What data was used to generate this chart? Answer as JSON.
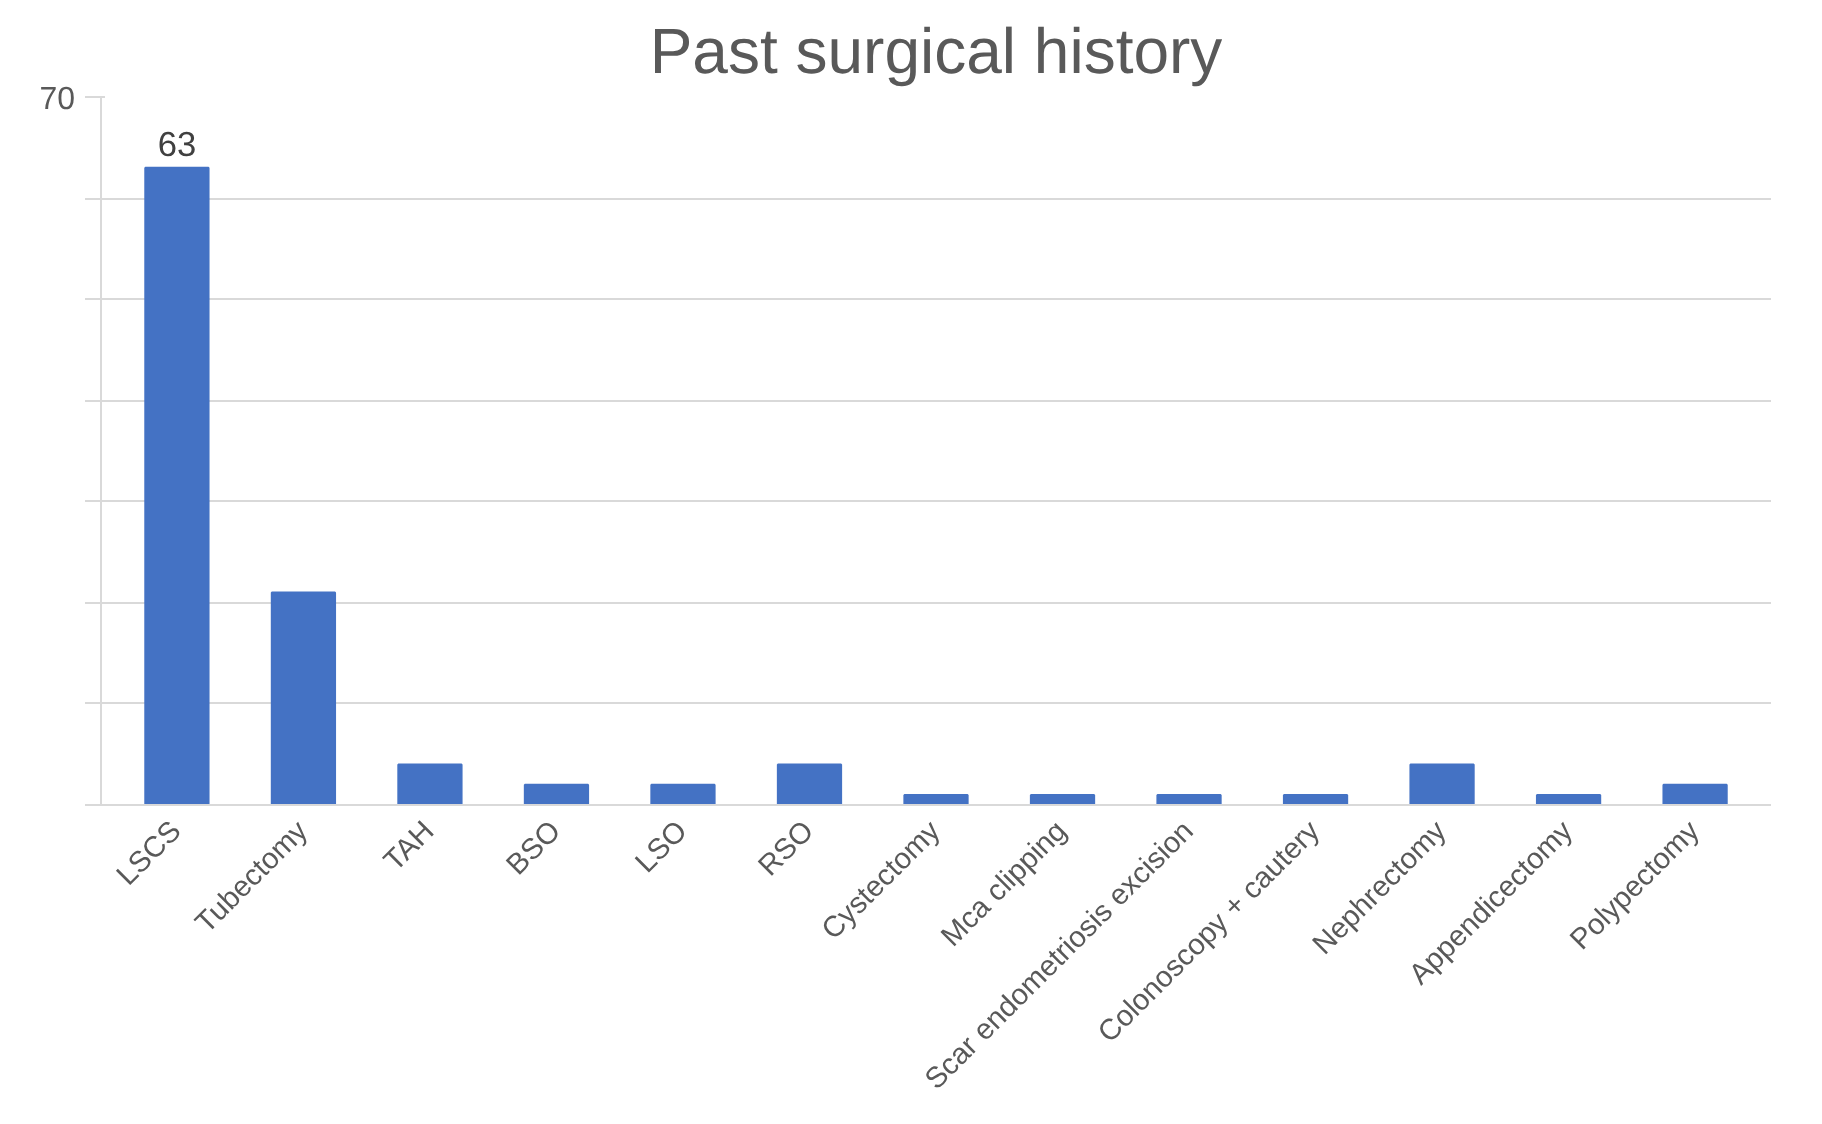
{
  "chart_data": {
    "type": "bar",
    "title": "Past surgical history",
    "categories": [
      "LSCS",
      "Tubectomy",
      "TAH",
      "BSO",
      "LSO",
      "RSO",
      "Cystectomy",
      "Mca clipping",
      "Scar endometriosis excision",
      "Colonoscopy + cautery",
      "Nephrectomy",
      "Appendicectomy",
      "Polypectomy"
    ],
    "values": [
      63,
      21,
      4,
      2,
      2,
      4,
      1,
      1,
      1,
      1,
      4,
      1,
      2
    ],
    "value_labels": [
      "63",
      null,
      null,
      null,
      null,
      null,
      null,
      null,
      null,
      null,
      null,
      null,
      null
    ],
    "color": "#4472c4",
    "ylim": [
      0,
      70
    ],
    "yticks": [
      {
        "value": 0,
        "label": null
      },
      {
        "value": 10,
        "label": null
      },
      {
        "value": 20,
        "label": null
      },
      {
        "value": 30,
        "label": null
      },
      {
        "value": 40,
        "label": null
      },
      {
        "value": 50,
        "label": null
      },
      {
        "value": 60,
        "label": null
      },
      70
    ],
    "grid": "y"
  }
}
